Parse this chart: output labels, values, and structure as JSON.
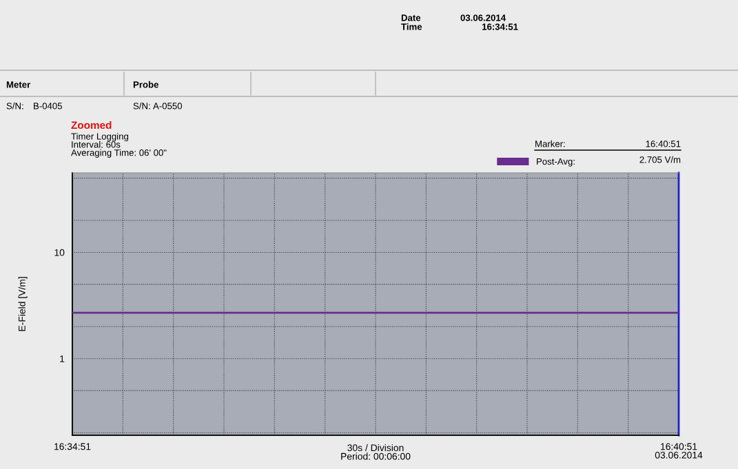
{
  "chart_data": {
    "type": "line",
    "title": "Zoomed",
    "subtitle": "Timer Logging\nInterval: 60s\nAveraging Time: 06' 00\"",
    "ylabel": "E-Field [V/m]",
    "xlabel": "30s / Division\nPeriod: 00:06:00",
    "annotations": [
      "Date",
      "03.06.2014",
      "Time",
      "16:34:51",
      "Meter",
      "S/N:",
      "B-0405",
      "Probe",
      "S/N:",
      "A-0550",
      "Marker:",
      "16:40:51",
      "2.705 V/m"
    ],
    "categories": [
      "16:34:51",
      null,
      null,
      null,
      null,
      null,
      null,
      null,
      null,
      null,
      null,
      null,
      "16:40:51\n03.06.2014"
    ],
    "series": [
      {
        "name": "Post-Avg:",
        "color": "#6a2c8e",
        "values": [
          2.705,
          2.705,
          2.705,
          2.705,
          2.705,
          2.705,
          2.705,
          2.705,
          2.705,
          2.705,
          2.705,
          2.705,
          2.705
        ]
      }
    ],
    "log": "y",
    "ylim": [
      0.19,
      56
    ],
    "yticks": [
      {
        "value": 0.2,
        "label": null
      },
      {
        "value": 0.5,
        "label": null
      },
      1,
      {
        "value": 2,
        "label": null
      },
      {
        "value": 5,
        "label": null
      },
      10,
      {
        "value": 20,
        "label": null
      },
      {
        "value": 50,
        "label": null
      }
    ],
    "grid": true,
    "legend": "top right",
    "line_style": "solid",
    "marker": "none"
  }
}
